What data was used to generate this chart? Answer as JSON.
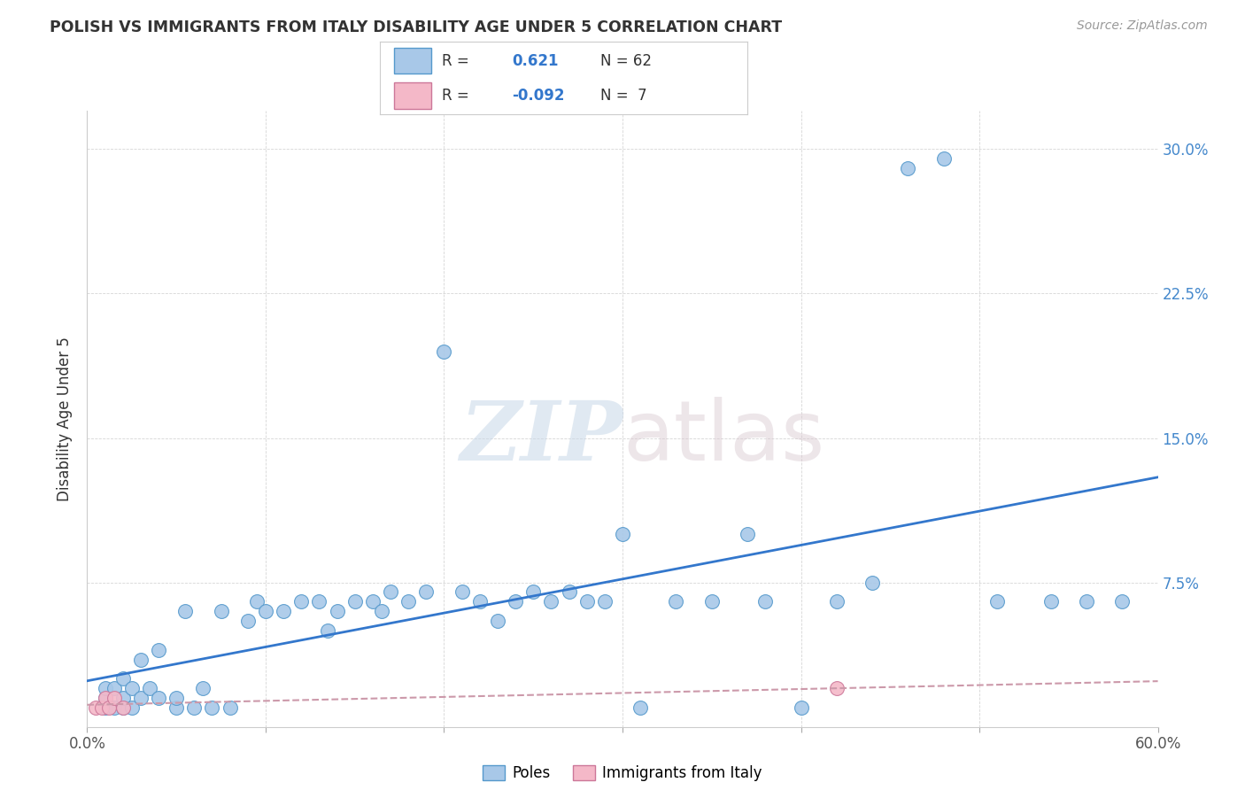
{
  "title": "POLISH VS IMMIGRANTS FROM ITALY DISABILITY AGE UNDER 5 CORRELATION CHART",
  "source": "Source: ZipAtlas.com",
  "ylabel": "Disability Age Under 5",
  "xlim": [
    0.0,
    0.6
  ],
  "ylim": [
    0.0,
    0.32
  ],
  "xticks": [
    0.0,
    0.1,
    0.2,
    0.3,
    0.4,
    0.5,
    0.6
  ],
  "xtick_labels": [
    "0.0%",
    "",
    "",
    "",
    "",
    "",
    "60.0%"
  ],
  "yticks": [
    0.0,
    0.075,
    0.15,
    0.225,
    0.3
  ],
  "ytick_labels": [
    "",
    "7.5%",
    "15.0%",
    "22.5%",
    "30.0%"
  ],
  "poles_R": 0.621,
  "poles_N": 62,
  "italy_R": -0.092,
  "italy_N": 7,
  "poles_color": "#a8c8e8",
  "italy_color": "#f4b8c8",
  "poles_edge_color": "#5599cc",
  "italy_edge_color": "#cc7799",
  "poles_line_color": "#3377cc",
  "italy_line_color": "#cc99aa",
  "legend_label_poles": "Poles",
  "legend_label_italy": "Immigrants from Italy",
  "watermark_zip": "ZIP",
  "watermark_atlas": "atlas",
  "background_color": "#ffffff",
  "grid_color": "#cccccc",
  "poles_x": [
    0.01,
    0.01,
    0.01,
    0.015,
    0.015,
    0.02,
    0.02,
    0.02,
    0.025,
    0.025,
    0.03,
    0.03,
    0.035,
    0.04,
    0.04,
    0.05,
    0.05,
    0.055,
    0.06,
    0.065,
    0.07,
    0.075,
    0.08,
    0.09,
    0.095,
    0.1,
    0.11,
    0.12,
    0.13,
    0.135,
    0.14,
    0.15,
    0.16,
    0.165,
    0.17,
    0.18,
    0.19,
    0.2,
    0.21,
    0.22,
    0.23,
    0.24,
    0.25,
    0.26,
    0.27,
    0.28,
    0.29,
    0.3,
    0.31,
    0.33,
    0.35,
    0.37,
    0.38,
    0.4,
    0.42,
    0.44,
    0.46,
    0.48,
    0.51,
    0.54,
    0.56,
    0.58
  ],
  "poles_y": [
    0.01,
    0.015,
    0.02,
    0.01,
    0.02,
    0.01,
    0.015,
    0.025,
    0.01,
    0.02,
    0.015,
    0.035,
    0.02,
    0.015,
    0.04,
    0.01,
    0.015,
    0.06,
    0.01,
    0.02,
    0.01,
    0.06,
    0.01,
    0.055,
    0.065,
    0.06,
    0.06,
    0.065,
    0.065,
    0.05,
    0.06,
    0.065,
    0.065,
    0.06,
    0.07,
    0.065,
    0.07,
    0.195,
    0.07,
    0.065,
    0.055,
    0.065,
    0.07,
    0.065,
    0.07,
    0.065,
    0.065,
    0.1,
    0.01,
    0.065,
    0.065,
    0.1,
    0.065,
    0.01,
    0.065,
    0.075,
    0.29,
    0.295,
    0.065,
    0.065,
    0.065,
    0.065
  ],
  "italy_x": [
    0.005,
    0.008,
    0.01,
    0.012,
    0.015,
    0.02,
    0.42
  ],
  "italy_y": [
    0.01,
    0.01,
    0.015,
    0.01,
    0.015,
    0.01,
    0.02
  ]
}
